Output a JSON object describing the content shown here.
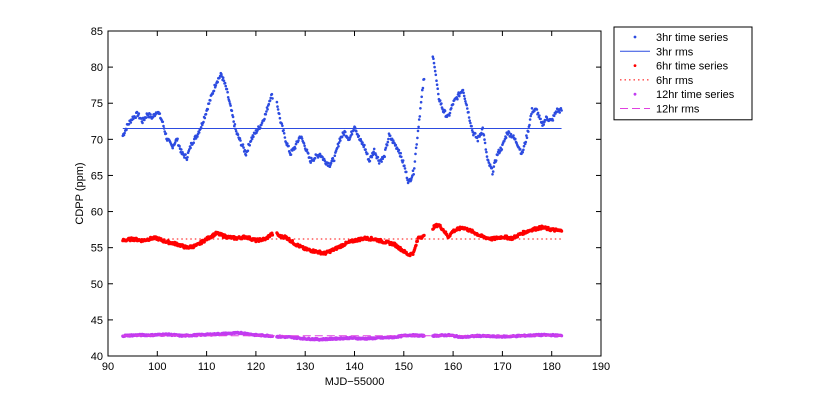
{
  "chart_data": {
    "type": "scatter",
    "title": "",
    "xlabel": "MJD−55000",
    "ylabel": "CDPP (ppm)",
    "xlim": [
      90,
      190
    ],
    "ylim": [
      40,
      85
    ],
    "x_ticks": [
      90,
      100,
      110,
      120,
      130,
      140,
      150,
      160,
      170,
      180,
      190
    ],
    "y_ticks": [
      40,
      45,
      50,
      55,
      60,
      65,
      70,
      75,
      80,
      85
    ],
    "grid": false,
    "legend_position": "outside-right",
    "gaps": [
      [
        123.4,
        124.2
      ],
      [
        154.2,
        155.8
      ]
    ],
    "series": [
      {
        "name": "3hr time series",
        "kind": "dots",
        "color": "#2c4be0",
        "x": [
          93,
          94,
          95,
          96,
          97,
          98,
          99,
          100,
          101,
          102,
          103,
          104,
          105,
          106,
          107,
          108,
          109,
          110,
          111,
          112,
          113,
          114,
          115,
          116,
          117,
          118,
          119,
          120,
          121,
          122,
          123,
          124,
          125,
          126,
          127,
          128,
          129,
          130,
          131,
          132,
          133,
          134,
          135,
          136,
          137,
          138,
          139,
          140,
          141,
          142,
          143,
          144,
          145,
          146,
          147,
          148,
          149,
          150,
          151,
          152,
          153,
          154,
          156,
          157,
          158,
          159,
          160,
          161,
          162,
          163,
          164,
          165,
          166,
          167,
          168,
          169,
          170,
          171,
          172,
          173,
          174,
          175,
          176,
          177,
          178,
          179,
          180,
          181,
          182
        ],
        "y": [
          70.5,
          72,
          73,
          73.5,
          72.5,
          73.5,
          73,
          74,
          72.5,
          70,
          69,
          70,
          68,
          67.5,
          69.5,
          70.5,
          72,
          74,
          76,
          78,
          79,
          77,
          74,
          71,
          69.5,
          68,
          70,
          71,
          72,
          73.5,
          76,
          76,
          72.5,
          70,
          68,
          69,
          70.5,
          69,
          67,
          67.5,
          68,
          67,
          66.5,
          67.5,
          70,
          71,
          70,
          72,
          70,
          69,
          67,
          68.5,
          67,
          67.5,
          70.5,
          69.5,
          68.5,
          66.5,
          64,
          65.5,
          72,
          78,
          81.5,
          76,
          74,
          73,
          75,
          76,
          77,
          74,
          71,
          70,
          71.5,
          67,
          65.5,
          68,
          69,
          71,
          70.5,
          69.5,
          68,
          70.5,
          74,
          74,
          72,
          73,
          72.5,
          74,
          74
        ]
      },
      {
        "name": "3hr rms",
        "kind": "solid",
        "color": "#2c4be0",
        "y": 71.5
      },
      {
        "name": "6hr time series",
        "kind": "dots",
        "color": "#ff0000",
        "x": [
          93,
          95,
          97,
          99,
          100,
          101,
          102,
          104,
          106,
          108,
          110,
          112,
          114,
          116,
          118,
          120,
          122,
          123,
          124,
          125,
          126,
          128,
          130,
          132,
          134,
          136,
          138,
          140,
          142,
          144,
          146,
          148,
          150,
          151,
          152,
          153,
          154,
          156,
          157,
          158,
          159,
          160,
          162,
          164,
          166,
          168,
          170,
          172,
          174,
          176,
          178,
          180,
          182
        ],
        "y": [
          56,
          56.2,
          56,
          56.3,
          56.3,
          56,
          55.8,
          55.5,
          55,
          55.3,
          56.2,
          57,
          56.5,
          56.3,
          56.5,
          56,
          56.2,
          56.8,
          57,
          56.5,
          56.5,
          55.5,
          54.8,
          54.5,
          54.2,
          54.8,
          55.5,
          56,
          56.3,
          56.2,
          55.8,
          55.5,
          54.5,
          54,
          54.3,
          56.5,
          56.5,
          57.8,
          58.2,
          57.5,
          56.5,
          57.3,
          57.8,
          57.2,
          56.5,
          56.2,
          56.5,
          56.3,
          57,
          57.5,
          57.8,
          57.5,
          57.3
        ]
      },
      {
        "name": "6hr rms",
        "kind": "dotted",
        "color": "#ff0000",
        "y": 56.2
      },
      {
        "name": "12hr time series",
        "kind": "dots",
        "color": "#c13cf0",
        "x": [
          93,
          96,
          99,
          102,
          105,
          108,
          111,
          114,
          117,
          120,
          123,
          124,
          127,
          130,
          133,
          136,
          139,
          142,
          145,
          148,
          151,
          154,
          156,
          159,
          162,
          165,
          168,
          171,
          174,
          177,
          180,
          182
        ],
        "y": [
          42.8,
          42.9,
          42.9,
          43,
          42.8,
          42.9,
          43,
          43.1,
          43.2,
          42.9,
          42.8,
          42.7,
          42.6,
          42.4,
          42.3,
          42.4,
          42.5,
          42.4,
          42.5,
          42.6,
          42.9,
          42.8,
          42.8,
          42.9,
          42.6,
          42.8,
          42.7,
          42.7,
          42.8,
          42.9,
          42.9,
          42.8
        ]
      },
      {
        "name": "12hr rms",
        "kind": "dashed",
        "color": "#e040e0",
        "y": 42.8
      }
    ]
  }
}
